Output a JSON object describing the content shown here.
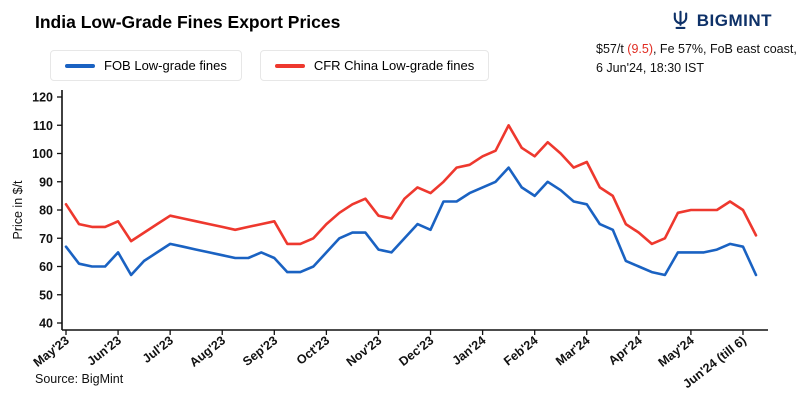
{
  "header": {
    "title": "India Low-Grade Fines Export Prices",
    "brand": "BIGMINT",
    "annotation": {
      "price": "$57/t ",
      "change": "(9.5)",
      "rest": ", Fe 57%, FoB east coast,",
      "line2": "6 Jun'24, 18:30 IST"
    }
  },
  "legend": [
    {
      "label": "FOB Low-grade fines",
      "color": "#1a62c2"
    },
    {
      "label": "CFR China Low-grade fines",
      "color": "#ee382e"
    }
  ],
  "source": "Source: BigMint",
  "colors": {
    "brand_navy": "#0e3168",
    "axis": "#111111",
    "annotation_red": "#e02b20"
  },
  "chart_data": {
    "type": "line",
    "title": "India Low-Grade Fines Export Prices",
    "xlabel": "",
    "ylabel": "Price in $/t",
    "ylim": [
      40,
      120
    ],
    "yticks": [
      40,
      50,
      60,
      70,
      80,
      90,
      100,
      110,
      120
    ],
    "grid": false,
    "legend_position": "top-left",
    "xticklabels": [
      "May'23",
      "Jun'23",
      "Jul'23",
      "Aug'23",
      "Sep'23",
      "Oct'23",
      "Nov'23",
      "Dec'23",
      "Jan'24",
      "Feb'24",
      "Mar'24",
      "Apr'24",
      "May'24",
      "Jun'24 (till 6)"
    ],
    "xtick_indices": [
      0,
      4,
      8,
      12,
      16,
      20,
      24,
      28,
      32,
      36,
      40,
      44,
      48,
      52
    ],
    "series": [
      {
        "name": "FOB Low-grade fines",
        "color": "#1a62c2",
        "values": [
          67,
          61,
          60,
          60,
          65,
          57,
          62,
          65,
          68,
          67,
          66,
          65,
          64,
          63,
          63,
          65,
          63,
          58,
          58,
          60,
          65,
          70,
          72,
          72,
          66,
          65,
          70,
          75,
          73,
          83,
          83,
          86,
          88,
          90,
          95,
          88,
          85,
          90,
          87,
          83,
          82,
          75,
          73,
          62,
          60,
          58,
          57,
          65,
          65,
          65,
          66,
          68,
          67,
          57
        ]
      },
      {
        "name": "CFR China Low-grade fines",
        "color": "#ee382e",
        "values": [
          82,
          75,
          74,
          74,
          76,
          69,
          72,
          75,
          78,
          77,
          76,
          75,
          74,
          73,
          74,
          75,
          76,
          68,
          68,
          70,
          75,
          79,
          82,
          84,
          78,
          77,
          84,
          88,
          86,
          90,
          95,
          96,
          99,
          101,
          110,
          102,
          99,
          104,
          100,
          95,
          97,
          88,
          85,
          75,
          72,
          68,
          70,
          79,
          80,
          80,
          80,
          83,
          80,
          71
        ]
      }
    ],
    "last_values_note": "FOB last value 57 (change -9.5), CFR last value 71"
  }
}
